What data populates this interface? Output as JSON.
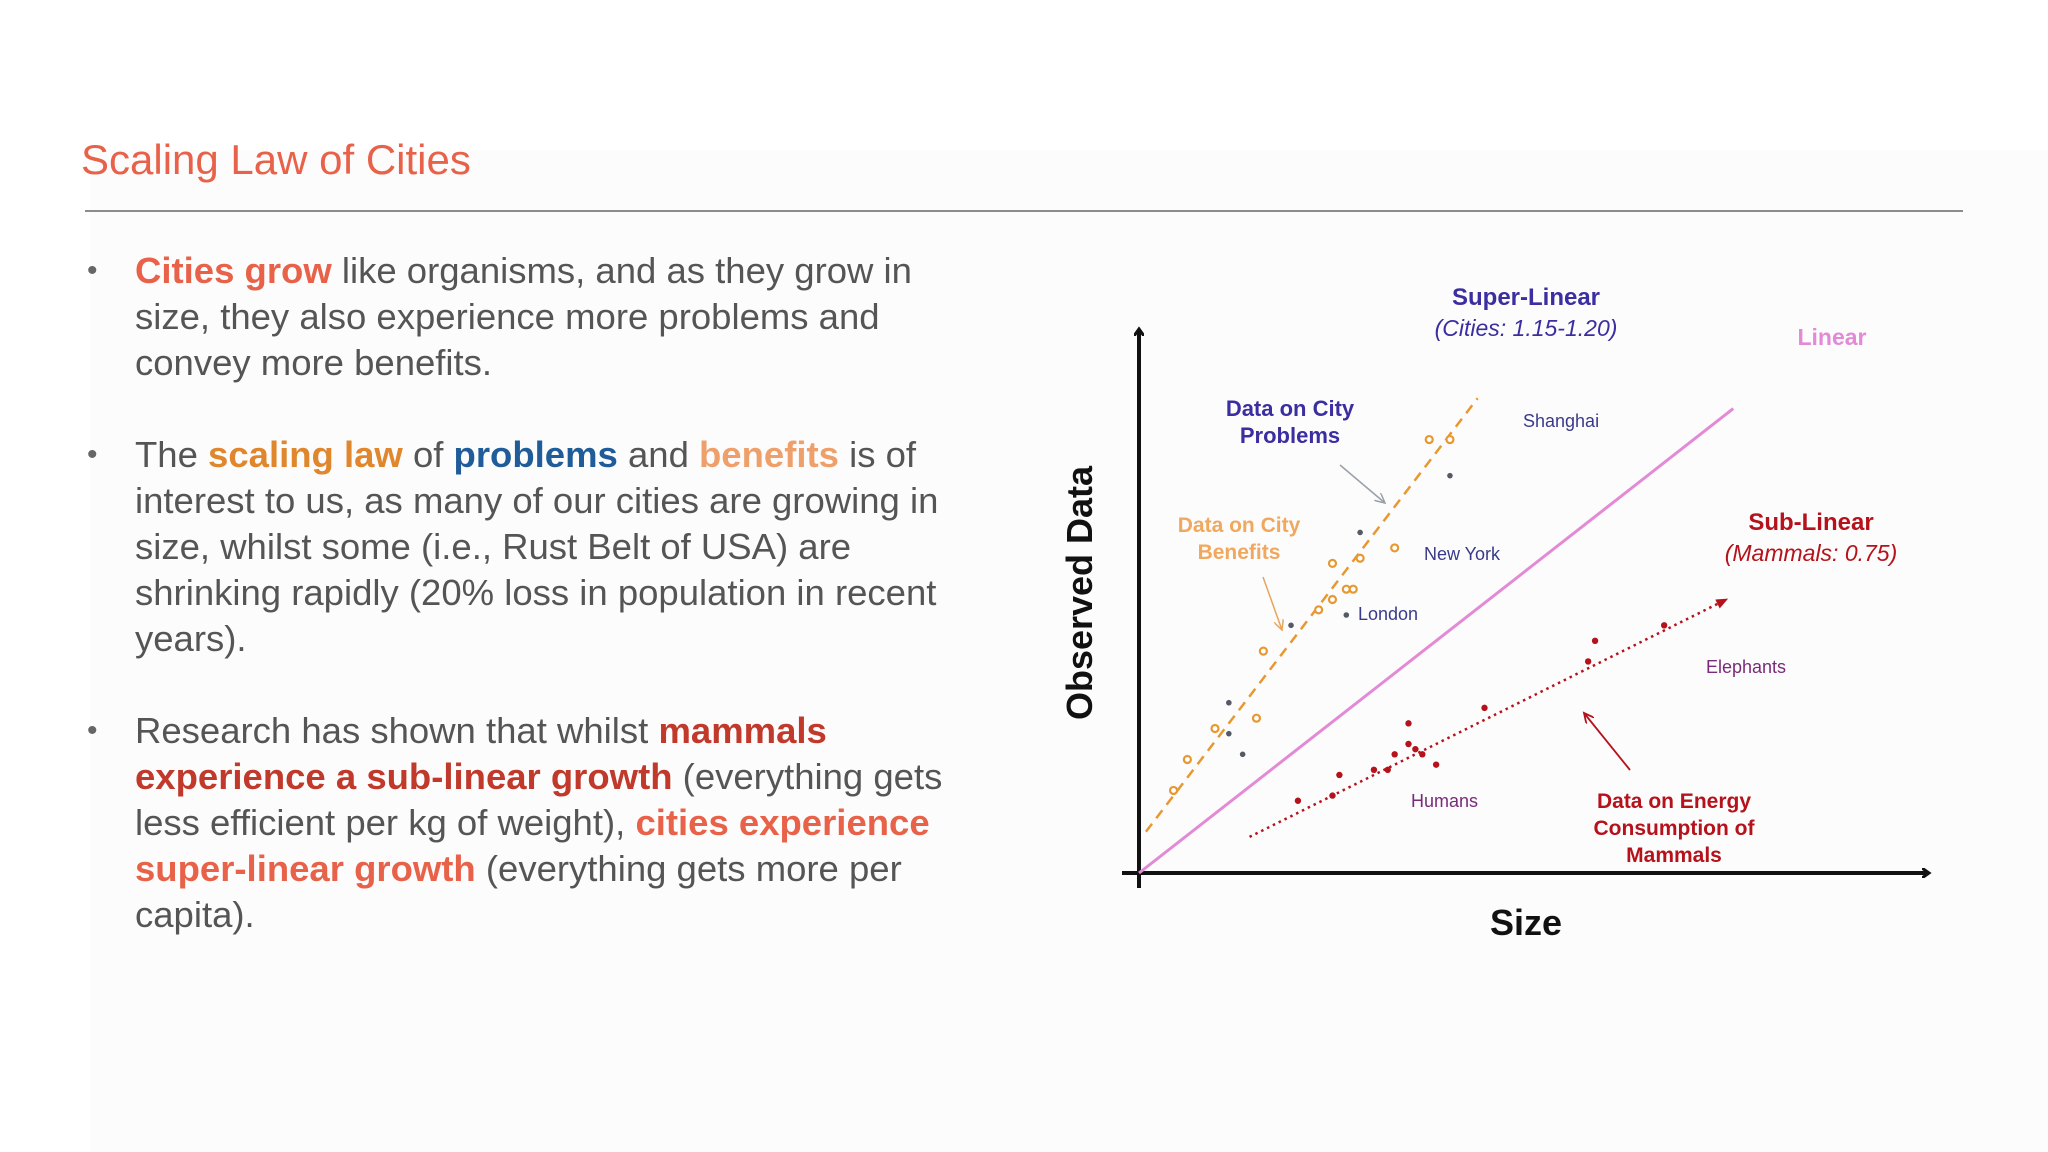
{
  "slide": {
    "title": "Scaling Law of Cities",
    "bullets": [
      [
        {
          "text": "Cities grow",
          "style": "hl-orange"
        },
        {
          "text": " like organisms, and as they grow in size, they also experience more problems and convey more benefits.",
          "style": ""
        }
      ],
      [
        {
          "text": "The ",
          "style": ""
        },
        {
          "text": "scaling law",
          "style": "hl-amber"
        },
        {
          "text": " of ",
          "style": ""
        },
        {
          "text": "problems",
          "style": "hl-blue"
        },
        {
          "text": " and ",
          "style": ""
        },
        {
          "text": "benefits",
          "style": "hl-peach"
        },
        {
          "text": " is of interest to us, as many of our cities are growing in size, whilst some (i.e., Rust Belt of USA) are shrinking rapidly (20% loss in population in recent years).",
          "style": ""
        }
      ],
      [
        {
          "text": "Research has shown that whilst ",
          "style": ""
        },
        {
          "text": "mammals experience a sub-linear growth",
          "style": "hl-red"
        },
        {
          "text": " (everything gets less efficient per kg of weight), ",
          "style": ""
        },
        {
          "text": "cities experience super-linear growth",
          "style": "hl-orange"
        },
        {
          "text": " (everything gets more per capita).",
          "style": ""
        }
      ]
    ]
  },
  "chart_data": {
    "type": "scatter",
    "xlabel": "Size",
    "ylabel": "Observed Data",
    "xlim": [
      0,
      100
    ],
    "ylim": [
      0,
      100
    ],
    "series": [
      {
        "name": "Linear",
        "kind": "line",
        "color": "#e38ad6",
        "points": [
          [
            0,
            0
          ],
          [
            86,
            90
          ]
        ]
      },
      {
        "name": "Super-Linear",
        "kind": "line-dashed",
        "color": "#e89830",
        "points": [
          [
            1,
            8
          ],
          [
            49,
            92
          ]
        ]
      },
      {
        "name": "Sub-Linear",
        "kind": "line-dotted",
        "color": "#b5121b",
        "points": [
          [
            16,
            7
          ],
          [
            85,
            53
          ]
        ]
      },
      {
        "name": "Data on City Benefits",
        "kind": "markers-open",
        "color": "#e89830",
        "points": [
          [
            5,
            16
          ],
          [
            7,
            22
          ],
          [
            11,
            28
          ],
          [
            17,
            30
          ],
          [
            18,
            43
          ],
          [
            26,
            51
          ],
          [
            28,
            53
          ],
          [
            28,
            60
          ],
          [
            30,
            55
          ],
          [
            31,
            55
          ],
          [
            32,
            61
          ],
          [
            37,
            63
          ],
          [
            42,
            84
          ],
          [
            45,
            84
          ]
        ]
      },
      {
        "name": "Data on City Problems",
        "kind": "markers-dark",
        "color": "#555a66",
        "points": [
          [
            13,
            33
          ],
          [
            13,
            27
          ],
          [
            15,
            23
          ],
          [
            22,
            48
          ],
          [
            30,
            50
          ],
          [
            32,
            66
          ],
          [
            45,
            77
          ]
        ]
      },
      {
        "name": "Data on Energy Consumption of Mammals",
        "kind": "markers-filled",
        "color": "#b5121b",
        "points": [
          [
            23,
            14
          ],
          [
            28,
            15
          ],
          [
            29,
            19
          ],
          [
            34,
            20
          ],
          [
            36,
            20
          ],
          [
            37,
            23
          ],
          [
            39,
            29
          ],
          [
            39,
            25
          ],
          [
            40,
            24
          ],
          [
            41,
            23
          ],
          [
            43,
            21
          ],
          [
            50,
            32
          ],
          [
            65,
            41
          ],
          [
            66,
            45
          ],
          [
            76,
            48
          ]
        ]
      }
    ],
    "annotations": {
      "super_linear_title": "Super-Linear",
      "super_linear_sub": "(Cities: 1.15-1.20)",
      "linear": "Linear",
      "sub_linear_title": "Sub-Linear",
      "sub_linear_sub": "(Mammals: 0.75)",
      "problems_line1": "Data on City",
      "problems_line2": "Problems",
      "benefits_line1": "Data on City",
      "benefits_line2": "Benefits",
      "energy_line1": "Data on Energy",
      "energy_line2": "Consumption of",
      "energy_line3": "Mammals",
      "shanghai": "Shanghai",
      "new_york": "New York",
      "london": "London",
      "humans": "Humans",
      "elephants": "Elephants"
    }
  }
}
